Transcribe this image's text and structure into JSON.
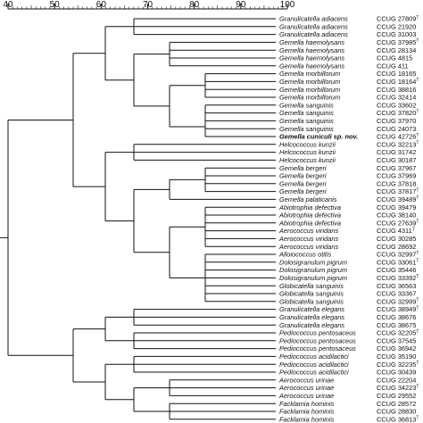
{
  "scale": {
    "tick_labels": [
      "40",
      "50",
      "60",
      "70",
      "80",
      "90",
      "100"
    ]
  },
  "leaves": [
    {
      "taxon": "Granulicatella adiacens",
      "strain": "CCUG 27809",
      "type_strain": true
    },
    {
      "taxon": "Granulicatella adiacens",
      "strain": "CCUG 21920",
      "type_strain": false
    },
    {
      "taxon": "Granulicatella adiacens",
      "strain": "CCUG 31003",
      "type_strain": false
    },
    {
      "taxon": "Gemella haemolysans",
      "strain": "CCUG 37985",
      "type_strain": true
    },
    {
      "taxon": "Gemella haemolysans",
      "strain": "CCUG 28134",
      "type_strain": false
    },
    {
      "taxon": "Gemella haemolysans",
      "strain": "CCUG 4815",
      "type_strain": false
    },
    {
      "taxon": "Gemella haemolysans",
      "strain": "CCUG 411",
      "type_strain": false
    },
    {
      "taxon": "Gemella morbillorum",
      "strain": "CCUG 18165",
      "type_strain": false
    },
    {
      "taxon": "Gemella morbillorum",
      "strain": "CCUG 18164",
      "type_strain": true
    },
    {
      "taxon": "Gemella morbillorum",
      "strain": "CCUG 38816",
      "type_strain": false
    },
    {
      "taxon": "Gemella morbillorum",
      "strain": "CCUG 32414",
      "type_strain": false
    },
    {
      "taxon": "Gemella sanguinis",
      "strain": "CCUG 33602",
      "type_strain": false
    },
    {
      "taxon": "Gemella sanguinis",
      "strain": "CCUG 37820",
      "type_strain": true
    },
    {
      "taxon": "Gemella sanguinis",
      "strain": "CCUG 37970",
      "type_strain": false
    },
    {
      "taxon": "Gemella sanguinis",
      "strain": "CCUG 24073",
      "type_strain": false
    },
    {
      "taxon": "Gemella cuniculi sp. nov.",
      "strain": "CCUG 42726",
      "type_strain": true,
      "bold": true
    },
    {
      "taxon": "Helcococcus kunzii",
      "strain": "CCUG 32213",
      "type_strain": true
    },
    {
      "taxon": "Helcococcus kunzii",
      "strain": "CCUG 31742",
      "type_strain": false
    },
    {
      "taxon": "Helcococcus kunzii",
      "strain": "CCUG 30187",
      "type_strain": false
    },
    {
      "taxon": "Gemella bergeri",
      "strain": "CCUG 37967",
      "type_strain": false
    },
    {
      "taxon": "Gemella bergeri",
      "strain": "CCUG 37969",
      "type_strain": false
    },
    {
      "taxon": "Gemella bergeri",
      "strain": "CCUG 37818",
      "type_strain": false
    },
    {
      "taxon": "Gemella bergeri",
      "strain": "CCUG 37817",
      "type_strain": true
    },
    {
      "taxon": "Gemella palaticanis",
      "strain": "CCUG 39489",
      "type_strain": true
    },
    {
      "taxon": "Abiotrophia defectiva",
      "strain": "CCUG 39479",
      "type_strain": false
    },
    {
      "taxon": "Abiotrophia defectiva",
      "strain": "CCUG 38140",
      "type_strain": false
    },
    {
      "taxon": "Abiotrophia defectiva",
      "strain": "CCUG 27639",
      "type_strain": true
    },
    {
      "taxon": "Aerococcus viridans",
      "strain": "CCUG 4311",
      "type_strain": true
    },
    {
      "taxon": "Aerococcus viridans",
      "strain": "CCUG 30285",
      "type_strain": false
    },
    {
      "taxon": "Aerococcus viridans",
      "strain": "CCUG 28692",
      "type_strain": false
    },
    {
      "taxon": "Alloiococcus otitis",
      "strain": "CCUG 32997",
      "type_strain": true
    },
    {
      "taxon": "Dolosigranulum pigrum",
      "strain": "CCUG 33061",
      "type_strain": true
    },
    {
      "taxon": "Dolosigranulum pigrum",
      "strain": "CCUG 35446",
      "type_strain": false
    },
    {
      "taxon": "Dolosigranulum pigrum",
      "strain": "CCUG 33392",
      "type_strain": true
    },
    {
      "taxon": "Globicatella sanguinis",
      "strain": "CCUG 36563",
      "type_strain": false
    },
    {
      "taxon": "Globicatella sanguinis",
      "strain": "CCUG 33367",
      "type_strain": false
    },
    {
      "taxon": "Globicatella sanguinis",
      "strain": "CCUG 32999",
      "type_strain": true
    },
    {
      "taxon": "Granulicatella elegans",
      "strain": "CCUG 38949",
      "type_strain": true
    },
    {
      "taxon": "Granulicatella elegans",
      "strain": "CCUG 38676",
      "type_strain": false
    },
    {
      "taxon": "Granulicatella elegans",
      "strain": "CCUG 38675",
      "type_strain": false
    },
    {
      "taxon": "Pediococcus pentosaceus",
      "strain": "CCUG 32205",
      "type_strain": true
    },
    {
      "taxon": "Pediococcus pentosaceus",
      "strain": "CCUG 37545",
      "type_strain": false
    },
    {
      "taxon": "Pediococcus pentosaceus",
      "strain": "CCUG 36942",
      "type_strain": false
    },
    {
      "taxon": "Pediococcus acidilactici",
      "strain": "CCUG 35190",
      "type_strain": false
    },
    {
      "taxon": "Pediococcus acidilactici",
      "strain": "CCUG 32235",
      "type_strain": true
    },
    {
      "taxon": "Pediococcus acidilactici",
      "strain": "CCUG 30439",
      "type_strain": false
    },
    {
      "taxon": "Aerococcus urinae",
      "strain": "CCUG 22204",
      "type_strain": false
    },
    {
      "taxon": "Aerococcus urinae",
      "strain": "CCUG 34223",
      "type_strain": true
    },
    {
      "taxon": "Aerococcus urinae",
      "strain": "CCUG 29552",
      "type_strain": false
    },
    {
      "taxon": "Facklamia hominis",
      "strain": "CCUG 28572",
      "type_strain": false
    },
    {
      "taxon": "Facklamia hominis",
      "strain": "CCUG 28830",
      "type_strain": false
    },
    {
      "taxon": "Facklamia hominis",
      "strain": "CCUG 36813",
      "type_strain": true
    }
  ],
  "type_marker": "T",
  "tree": [
    [
      [
        [
          0,
          1,
          2
        ],
        [
          [
            3,
            4,
            5,
            6
          ],
          [
            [
              7,
              8,
              9,
              10
            ],
            [
              [
                11,
                12,
                13,
                14
              ],
              15
            ]
          ]
        ]
      ],
      [
        [
          16,
          17,
          18
        ],
        [
          [
            [
              19,
              20,
              21,
              22
            ],
            23
          ],
          [
            [
              [
                24,
                25,
                26
              ],
              [
                27,
                28,
                29
              ]
            ],
            [
              [
                30,
                [
                  31,
                  32,
                  33
                ]
              ],
              [
                34,
                35,
                36
              ]
            ]
          ]
        ]
      ]
    ],
    [
      [
        [
          37,
          38,
          39
        ],
        [
          40,
          41,
          42
        ]
      ],
      [
        [
          43,
          44,
          45
        ],
        [
          [
            46,
            47,
            48
          ],
          [
            49,
            50,
            51
          ]
        ]
      ]
    ]
  ]
}
